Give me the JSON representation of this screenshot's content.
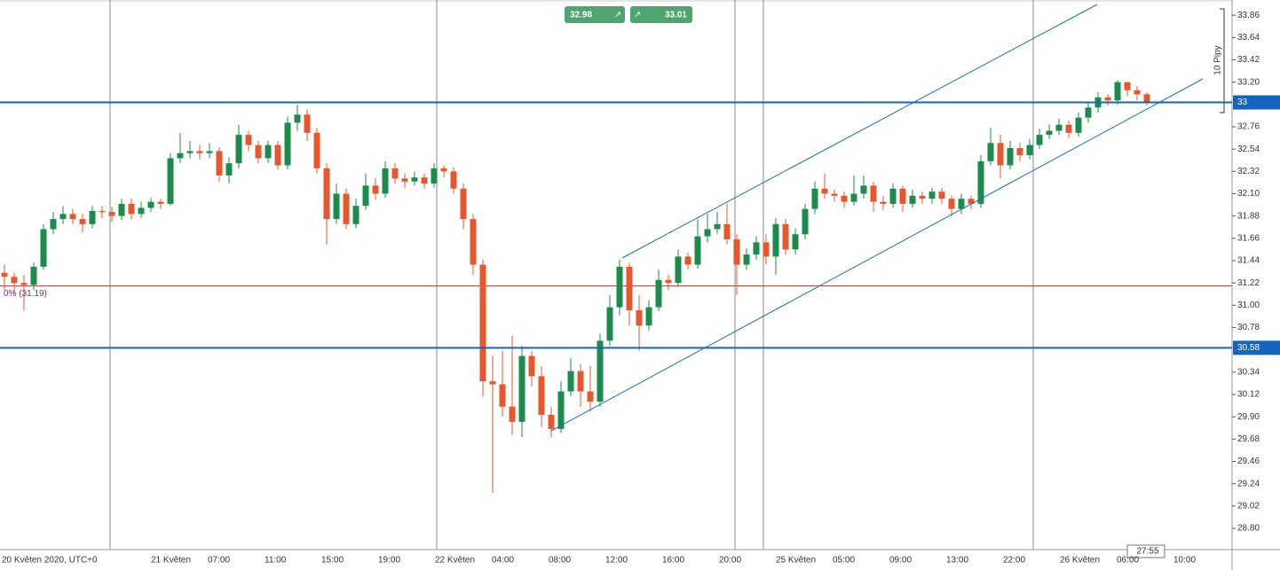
{
  "chart_data": {
    "type": "candlestick",
    "ylim": [
      28.59,
      34.01
    ],
    "yticks": [
      33.86,
      33.64,
      33.42,
      {
        "value": 33.2,
        "label": "33.20"
      },
      32.76,
      32.54,
      32.32,
      {
        "value": 32.1,
        "label": "32.10"
      },
      31.88,
      31.66,
      31.44,
      31.22,
      {
        "value": 31,
        "label": "31.00"
      },
      30.78,
      30.34,
      30.12,
      {
        "value": 29.9,
        "label": "29.90"
      },
      29.68,
      29.46,
      29.24,
      29.02,
      {
        "value": 28.8,
        "label": "28.80"
      }
    ],
    "levels": [
      33,
      30.58
    ],
    "fib": {
      "value": 31.19,
      "label": "0% (31.19)"
    },
    "up_color": "#1b8c4c",
    "down_color": "#e8572b",
    "level_color": "#1565c0",
    "x_labels": [
      "20 Květen 2020, UTC+0",
      "21 Květen",
      "07:00",
      "11:00",
      "15:00",
      "19:00",
      "22 Květen",
      "04:00",
      "08:00",
      "12:00",
      "16:00",
      "20:00",
      "25 Květen",
      "05:00",
      "09:00",
      "13:00",
      "22:00",
      "26 Květen",
      "06:00",
      "10:00"
    ],
    "open": [
      31.32,
      31.28,
      31.22,
      31.2,
      31.38,
      31.75,
      31.85,
      31.9,
      31.85,
      31.8,
      31.93,
      31.92,
      31.88,
      32.0,
      31.9,
      31.96,
      32.02,
      32.0,
      32.45,
      32.5,
      32.52,
      32.5,
      32.52,
      32.28,
      32.4,
      32.68,
      32.58,
      32.45,
      32.58,
      32.38,
      32.8,
      32.88,
      32.7,
      32.35,
      31.85,
      32.1,
      31.8,
      31.98,
      32.18,
      32.1,
      32.35,
      32.25,
      32.22,
      32.26,
      32.2,
      32.35,
      32.32,
      32.15,
      31.85,
      31.4,
      30.25,
      30.22,
      30.0,
      29.85,
      30.5,
      30.3,
      29.92,
      29.78,
      30.15,
      30.35,
      30.15,
      30.05,
      30.65,
      30.98,
      31.38,
      30.95,
      30.8,
      30.98,
      31.25,
      31.22,
      31.48,
      31.4,
      31.68,
      31.75,
      31.8,
      31.65,
      31.4,
      31.5,
      31.62,
      31.48,
      31.8,
      31.55,
      31.7,
      31.95,
      32.15,
      32.1,
      32.08,
      32.02,
      32.1,
      32.18,
      32.02,
      32.0,
      32.15,
      32.0,
      32.08,
      32.05,
      32.12,
      32.05,
      31.95,
      32.05,
      32.0,
      32.42,
      32.6,
      32.38,
      32.55,
      32.48,
      32.58,
      32.68,
      32.72,
      32.78,
      32.7,
      32.85,
      32.95,
      33.05,
      33.02,
      33.2,
      33.12,
      33.08
    ],
    "close": [
      31.28,
      31.22,
      31.2,
      31.38,
      31.75,
      31.85,
      31.9,
      31.85,
      31.8,
      31.93,
      31.92,
      31.88,
      32.0,
      31.9,
      31.96,
      32.02,
      32.0,
      32.45,
      32.5,
      32.52,
      32.5,
      32.52,
      32.28,
      32.4,
      32.68,
      32.58,
      32.45,
      32.58,
      32.38,
      32.8,
      32.88,
      32.7,
      32.35,
      31.85,
      32.1,
      31.8,
      31.98,
      32.18,
      32.1,
      32.35,
      32.25,
      32.22,
      32.26,
      32.2,
      32.35,
      32.32,
      32.15,
      31.85,
      31.4,
      30.25,
      30.22,
      30.0,
      29.85,
      30.5,
      30.3,
      29.92,
      29.78,
      30.15,
      30.35,
      30.15,
      30.05,
      30.65,
      30.98,
      31.38,
      30.95,
      30.8,
      30.98,
      31.25,
      31.22,
      31.48,
      31.4,
      31.68,
      31.75,
      31.8,
      31.65,
      31.4,
      31.5,
      31.62,
      31.48,
      31.8,
      31.55,
      31.7,
      31.95,
      32.15,
      32.1,
      32.08,
      32.02,
      32.1,
      32.18,
      32.02,
      32.0,
      32.15,
      32.0,
      32.08,
      32.05,
      32.12,
      32.05,
      31.95,
      32.05,
      32.0,
      32.42,
      32.6,
      32.38,
      32.55,
      32.48,
      32.58,
      32.68,
      32.72,
      32.78,
      32.7,
      32.85,
      32.95,
      33.05,
      33.02,
      33.2,
      33.12,
      33.08,
      33.0
    ],
    "high": [
      31.4,
      31.32,
      31.3,
      31.42,
      31.8,
      31.92,
      31.98,
      31.95,
      31.9,
      31.98,
      31.98,
      31.97,
      32.05,
      32.05,
      32.02,
      32.06,
      32.05,
      32.5,
      32.7,
      32.62,
      32.58,
      32.6,
      32.56,
      32.46,
      32.78,
      32.72,
      32.62,
      32.62,
      32.62,
      32.86,
      32.98,
      32.93,
      32.75,
      32.4,
      32.2,
      32.15,
      32.05,
      32.3,
      32.25,
      32.42,
      32.4,
      32.3,
      32.32,
      32.3,
      32.4,
      32.38,
      32.36,
      32.2,
      31.9,
      31.45,
      30.5,
      30.55,
      30.7,
      30.6,
      30.55,
      30.4,
      30.0,
      30.25,
      30.48,
      30.42,
      30.4,
      30.72,
      31.1,
      31.45,
      31.42,
      31.1,
      31.05,
      31.35,
      31.3,
      31.55,
      31.52,
      31.85,
      31.9,
      31.92,
      32.0,
      31.7,
      31.56,
      31.68,
      31.7,
      31.86,
      31.85,
      31.76,
      32.0,
      32.22,
      32.3,
      32.14,
      32.12,
      32.28,
      32.28,
      32.22,
      32.08,
      32.2,
      32.18,
      32.14,
      32.12,
      32.16,
      32.16,
      32.08,
      32.1,
      32.08,
      32.48,
      32.75,
      32.68,
      32.62,
      32.6,
      32.64,
      32.74,
      32.78,
      32.84,
      32.82,
      32.9,
      33.0,
      33.1,
      33.08,
      33.22,
      33.2,
      33.16,
      33.1
    ],
    "low": [
      31.15,
      31.12,
      30.95,
      31.15,
      31.35,
      31.7,
      31.8,
      31.8,
      31.72,
      31.76,
      31.86,
      31.82,
      31.84,
      31.85,
      31.86,
      31.92,
      31.95,
      31.98,
      32.4,
      32.45,
      32.44,
      32.45,
      32.22,
      32.2,
      32.35,
      32.52,
      32.4,
      32.4,
      32.34,
      32.34,
      32.72,
      32.62,
      32.3,
      31.6,
      31.8,
      31.75,
      31.76,
      31.94,
      32.04,
      32.06,
      32.2,
      32.16,
      32.18,
      32.15,
      32.16,
      32.26,
      32.1,
      31.75,
      31.3,
      30.1,
      29.15,
      29.9,
      29.72,
      29.7,
      30.2,
      29.8,
      29.7,
      29.74,
      30.1,
      30.0,
      29.95,
      30.0,
      30.6,
      30.9,
      30.8,
      30.55,
      30.75,
      30.94,
      31.15,
      31.18,
      31.35,
      31.36,
      31.62,
      31.7,
      31.6,
      31.1,
      31.35,
      31.45,
      31.4,
      31.3,
      31.5,
      31.5,
      31.65,
      31.9,
      32.05,
      32.02,
      31.96,
      31.98,
      32.05,
      31.92,
      31.94,
      31.96,
      31.92,
      31.96,
      32.0,
      32.0,
      32.0,
      31.88,
      31.9,
      31.95,
      31.96,
      32.38,
      32.25,
      32.34,
      32.42,
      32.44,
      32.54,
      32.64,
      32.68,
      32.65,
      32.66,
      32.8,
      32.9,
      32.97,
      32.98,
      33.06,
      33.02,
      32.97
    ]
  },
  "ui": {
    "sell": "32.98",
    "buy": "33.01",
    "pips": "10 Pipy",
    "countdown": "27:55"
  }
}
